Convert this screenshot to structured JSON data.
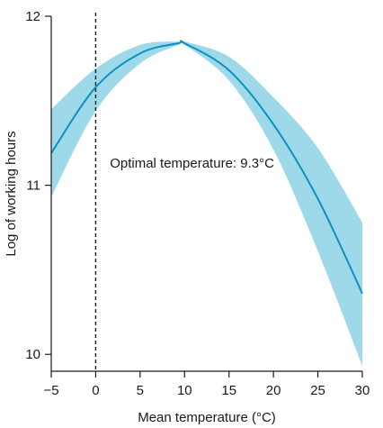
{
  "chart_data": {
    "type": "line",
    "xlabel": "Mean temperature (°C)",
    "ylabel": "Log of working hours",
    "xlim": [
      -5,
      30
    ],
    "ylim": [
      10,
      12
    ],
    "xticks": [
      -5,
      0,
      5,
      10,
      15,
      20,
      25,
      30
    ],
    "xtick_labels": [
      "−5",
      "0",
      "5",
      "10",
      "15",
      "20",
      "25",
      "30"
    ],
    "yticks": [
      10,
      11,
      12
    ],
    "ytick_labels": [
      "10",
      "11",
      "12"
    ],
    "grid": false,
    "legend": "none",
    "series": [
      {
        "x": [
          -5,
          0,
          5,
          9.3,
          10,
          15,
          20,
          25,
          30
        ],
        "y": [
          11.19,
          11.58,
          11.78,
          11.84,
          11.84,
          11.68,
          11.36,
          10.92,
          10.36
        ],
        "lower": [
          10.93,
          11.44,
          11.72,
          11.83,
          11.83,
          11.62,
          11.21,
          10.61,
          9.93
        ],
        "upper": [
          11.45,
          11.69,
          11.83,
          11.85,
          11.85,
          11.76,
          11.52,
          11.22,
          10.78
        ],
        "line_color": "#0d91be",
        "band_color": "#9ed9ea"
      }
    ],
    "reference_line": {
      "x": 0,
      "style": "dashed",
      "color": "#1a1a1a"
    },
    "annotation": {
      "text": "Optimal temperature: 9.3°C",
      "x": 2,
      "y": 11.2
    }
  }
}
